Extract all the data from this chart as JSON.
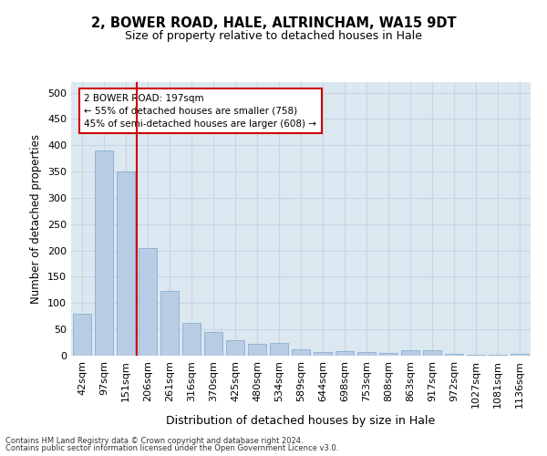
{
  "title": "2, BOWER ROAD, HALE, ALTRINCHAM, WA15 9DT",
  "subtitle": "Size of property relative to detached houses in Hale",
  "xlabel": "Distribution of detached houses by size in Hale",
  "ylabel": "Number of detached properties",
  "categories": [
    "42sqm",
    "97sqm",
    "151sqm",
    "206sqm",
    "261sqm",
    "316sqm",
    "370sqm",
    "425sqm",
    "480sqm",
    "534sqm",
    "589sqm",
    "644sqm",
    "698sqm",
    "753sqm",
    "808sqm",
    "863sqm",
    "917sqm",
    "972sqm",
    "1027sqm",
    "1081sqm",
    "1136sqm"
  ],
  "values": [
    80,
    390,
    350,
    205,
    123,
    63,
    45,
    30,
    22,
    24,
    13,
    7,
    8,
    7,
    6,
    10,
    10,
    4,
    2,
    2,
    3
  ],
  "bar_color": "#b8cce4",
  "bar_edge_color": "#7aa6cc",
  "red_line_index": 3,
  "annotation_line1": "2 BOWER ROAD: 197sqm",
  "annotation_line2": "← 55% of detached houses are smaller (758)",
  "annotation_line3": "45% of semi-detached houses are larger (608) →",
  "annotation_box_color": "#ffffff",
  "annotation_box_edge": "#cc0000",
  "red_line_color": "#cc0000",
  "grid_color": "#c8d4e0",
  "plot_bg_color": "#dce8f0",
  "ylim": [
    0,
    520
  ],
  "yticks": [
    0,
    50,
    100,
    150,
    200,
    250,
    300,
    350,
    400,
    450,
    500
  ],
  "footer1": "Contains HM Land Registry data © Crown copyright and database right 2024.",
  "footer2": "Contains public sector information licensed under the Open Government Licence v3.0."
}
